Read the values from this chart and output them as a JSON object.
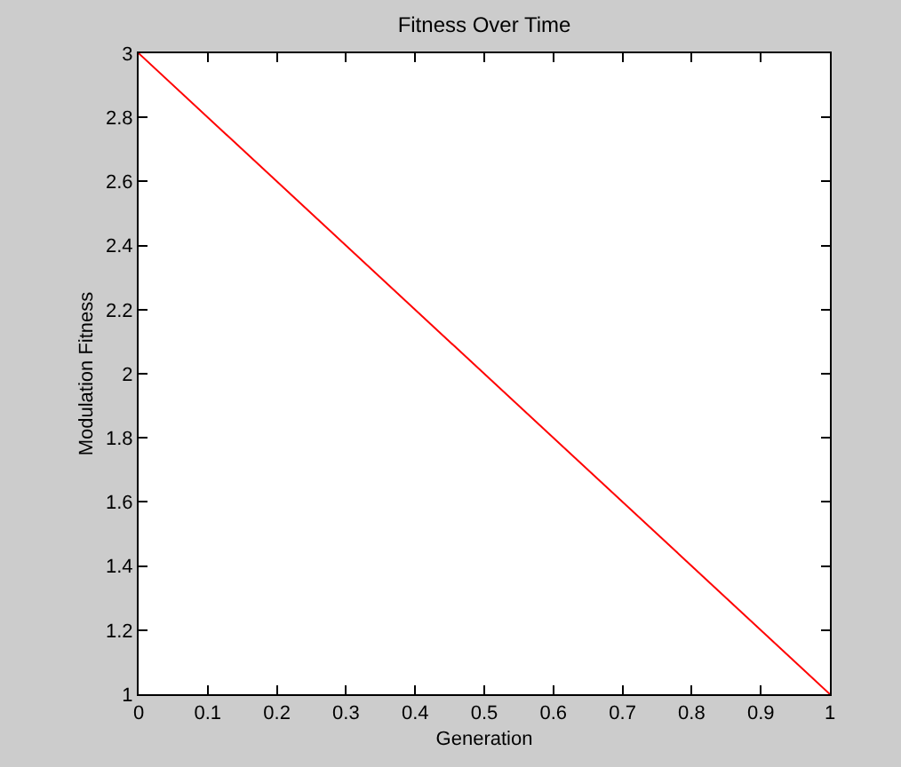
{
  "chart_data": {
    "type": "line",
    "title": "Fitness Over Time",
    "xlabel": "Generation",
    "ylabel": "Modulation Fitness",
    "x": [
      0,
      1
    ],
    "series": [
      {
        "color": "#ff0000",
        "values": [
          3,
          1
        ]
      }
    ],
    "xlim": [
      0,
      1
    ],
    "xticks": [
      0,
      0.1,
      0.2,
      0.3,
      0.4,
      0.5,
      0.6,
      0.7,
      0.8,
      0.9,
      1
    ],
    "ylim": [
      1,
      3
    ],
    "yticks": [
      1,
      1.2,
      1.4,
      1.6,
      1.8,
      2,
      2.2,
      2.4,
      2.6,
      2.8,
      3
    ],
    "grid": false,
    "marker": "none",
    "line_style": "solid"
  }
}
